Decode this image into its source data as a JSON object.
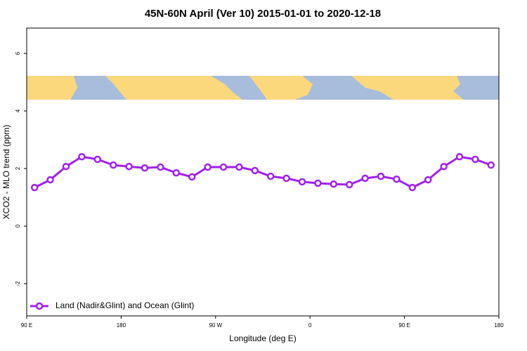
{
  "chart_data": {
    "type": "line",
    "title": "45N-60N April (Ver 10)   2015-01-01 to 2020-12-18",
    "x_label": "Longitude (deg E)",
    "y_label": "XCO2 - MLO trend (ppm)",
    "xlim": [
      90,
      540
    ],
    "ylim": [
      -3.12,
      6.88
    ],
    "xticks": [
      {
        "value": 90,
        "label": "90 E"
      },
      180,
      {
        "value": 270,
        "label": "90 W"
      },
      {
        "value": 360,
        "label": "0"
      },
      {
        "value": 450,
        "label": "90 E"
      },
      {
        "value": 540,
        "label": "180"
      }
    ],
    "yticks": [
      -2,
      0,
      2,
      4,
      6
    ],
    "legend": "bottom-left",
    "x": [
      97.5,
      112.5,
      127.5,
      142.5,
      157.5,
      172.5,
      187.5,
      202.5,
      217.5,
      232.5,
      247.5,
      262.5,
      277.5,
      292.5,
      307.5,
      322.5,
      337.5,
      352.5,
      367.5,
      382.5,
      397.5,
      412.5,
      427.5,
      442.5,
      457.5,
      472.5,
      487.5,
      502.5,
      517.5,
      532.5
    ],
    "series": [
      {
        "name": "Land (Nadir&Glint) and Ocean (Glint)",
        "color": "#a020f0",
        "values": [
          1.34,
          1.61,
          2.07,
          2.41,
          2.32,
          2.12,
          2.07,
          2.02,
          2.05,
          1.85,
          1.71,
          2.05,
          2.05,
          2.05,
          1.93,
          1.73,
          1.66,
          1.54,
          1.49,
          1.46,
          1.44,
          1.66,
          1.73,
          1.63,
          1.34,
          1.61,
          2.07,
          2.41,
          2.32,
          2.12
        ]
      }
    ]
  }
}
